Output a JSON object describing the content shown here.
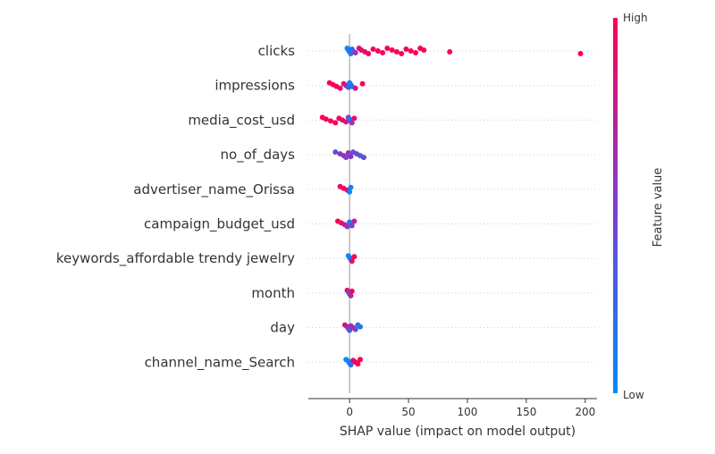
{
  "chart_data": {
    "type": "scatter",
    "subtype": "shap-beeswarm",
    "title": "",
    "xlabel": "SHAP value (impact on model output)",
    "xlim": [
      -35,
      210
    ],
    "xticks": [
      0,
      50,
      100,
      150,
      200
    ],
    "grid": "vertical gridline per feature row",
    "colorbar": {
      "label": "Feature value",
      "high_label": "High",
      "low_label": "Low",
      "high_color": "#ff0052",
      "low_color": "#008bfb"
    },
    "features": [
      {
        "name": "clicks",
        "points": [
          {
            "x": -2,
            "v": 0.0
          },
          {
            "x": -1,
            "v": 0.05
          },
          {
            "x": 0,
            "v": 0.1
          },
          {
            "x": 1,
            "v": 0.15
          },
          {
            "x": 2,
            "v": 0.2
          },
          {
            "x": 3,
            "v": 0.35
          },
          {
            "x": 5,
            "v": 0.6
          },
          {
            "x": 8,
            "v": 0.85
          },
          {
            "x": 10,
            "v": 0.9
          },
          {
            "x": 13,
            "v": 0.92
          },
          {
            "x": 16,
            "v": 0.94
          },
          {
            "x": 20,
            "v": 0.95
          },
          {
            "x": 24,
            "v": 0.96
          },
          {
            "x": 28,
            "v": 0.97
          },
          {
            "x": 32,
            "v": 0.97
          },
          {
            "x": 36,
            "v": 0.98
          },
          {
            "x": 40,
            "v": 0.98
          },
          {
            "x": 44,
            "v": 0.98
          },
          {
            "x": 48,
            "v": 0.99
          },
          {
            "x": 52,
            "v": 0.99
          },
          {
            "x": 56,
            "v": 0.99
          },
          {
            "x": 60,
            "v": 0.99
          },
          {
            "x": 63,
            "v": 1.0
          },
          {
            "x": 85,
            "v": 1.0
          },
          {
            "x": 196,
            "v": 1.0
          }
        ]
      },
      {
        "name": "impressions",
        "points": [
          {
            "x": -17,
            "v": 1.0
          },
          {
            "x": -14,
            "v": 0.98
          },
          {
            "x": -11,
            "v": 0.97
          },
          {
            "x": -8,
            "v": 0.95
          },
          {
            "x": -5,
            "v": 0.9
          },
          {
            "x": -3,
            "v": 0.7
          },
          {
            "x": -1,
            "v": 0.3
          },
          {
            "x": 0,
            "v": 0.1
          },
          {
            "x": 1,
            "v": 0.05
          },
          {
            "x": 2,
            "v": 0.15
          },
          {
            "x": 5,
            "v": 0.8
          },
          {
            "x": 11,
            "v": 1.0
          }
        ]
      },
      {
        "name": "media_cost_usd",
        "points": [
          {
            "x": -23,
            "v": 1.0
          },
          {
            "x": -20,
            "v": 0.98
          },
          {
            "x": -16,
            "v": 0.97
          },
          {
            "x": -12,
            "v": 0.96
          },
          {
            "x": -9,
            "v": 0.95
          },
          {
            "x": -6,
            "v": 0.93
          },
          {
            "x": -3,
            "v": 0.85
          },
          {
            "x": -1,
            "v": 0.5
          },
          {
            "x": 0,
            "v": 0.1
          },
          {
            "x": 1,
            "v": 0.2
          },
          {
            "x": 2,
            "v": 0.6
          },
          {
            "x": 4,
            "v": 0.9
          }
        ]
      },
      {
        "name": "no_of_days",
        "points": [
          {
            "x": -12,
            "v": 0.45
          },
          {
            "x": -8,
            "v": 0.55
          },
          {
            "x": -5,
            "v": 0.6
          },
          {
            "x": -3,
            "v": 0.5
          },
          {
            "x": -1,
            "v": 0.8
          },
          {
            "x": 0,
            "v": 0.3
          },
          {
            "x": 1,
            "v": 0.6
          },
          {
            "x": 3,
            "v": 0.4
          },
          {
            "x": 6,
            "v": 0.45
          },
          {
            "x": 9,
            "v": 0.35
          },
          {
            "x": 12,
            "v": 0.4
          }
        ]
      },
      {
        "name": "advertiser_name_Orissa",
        "points": [
          {
            "x": -8,
            "v": 1.0
          },
          {
            "x": -5,
            "v": 0.95
          },
          {
            "x": -2,
            "v": 0.9
          },
          {
            "x": 0,
            "v": 0.0
          },
          {
            "x": 1,
            "v": 0.05
          }
        ]
      },
      {
        "name": "campaign_budget_usd",
        "points": [
          {
            "x": -10,
            "v": 1.0
          },
          {
            "x": -7,
            "v": 0.9
          },
          {
            "x": -4,
            "v": 0.8
          },
          {
            "x": -2,
            "v": 0.6
          },
          {
            "x": 0,
            "v": 0.2
          },
          {
            "x": 1,
            "v": 0.1
          },
          {
            "x": 2,
            "v": 0.5
          },
          {
            "x": 4,
            "v": 0.7
          }
        ]
      },
      {
        "name": "keywords_affordable trendy jewelry",
        "points": [
          {
            "x": -1,
            "v": 0.0
          },
          {
            "x": 0,
            "v": 0.05
          },
          {
            "x": 1,
            "v": 0.1
          },
          {
            "x": 2,
            "v": 0.9
          },
          {
            "x": 4,
            "v": 1.0
          }
        ]
      },
      {
        "name": "month",
        "points": [
          {
            "x": -2,
            "v": 0.9
          },
          {
            "x": -1,
            "v": 0.6
          },
          {
            "x": 0,
            "v": 0.3
          },
          {
            "x": 1,
            "v": 0.7
          },
          {
            "x": 2,
            "v": 1.0
          }
        ]
      },
      {
        "name": "day",
        "points": [
          {
            "x": -4,
            "v": 0.8
          },
          {
            "x": -2,
            "v": 0.9
          },
          {
            "x": -1,
            "v": 0.5
          },
          {
            "x": 0,
            "v": 0.3
          },
          {
            "x": 1,
            "v": 0.6
          },
          {
            "x": 3,
            "v": 0.7
          },
          {
            "x": 5,
            "v": 0.4
          },
          {
            "x": 7,
            "v": 0.2
          },
          {
            "x": 9,
            "v": 0.1
          }
        ]
      },
      {
        "name": "channel_name_Search",
        "points": [
          {
            "x": -3,
            "v": 0.0
          },
          {
            "x": -1,
            "v": 0.05
          },
          {
            "x": 0,
            "v": 0.1
          },
          {
            "x": 1,
            "v": 0.2
          },
          {
            "x": 3,
            "v": 0.85
          },
          {
            "x": 5,
            "v": 0.95
          },
          {
            "x": 7,
            "v": 1.0
          },
          {
            "x": 9,
            "v": 1.0
          }
        ]
      }
    ]
  }
}
